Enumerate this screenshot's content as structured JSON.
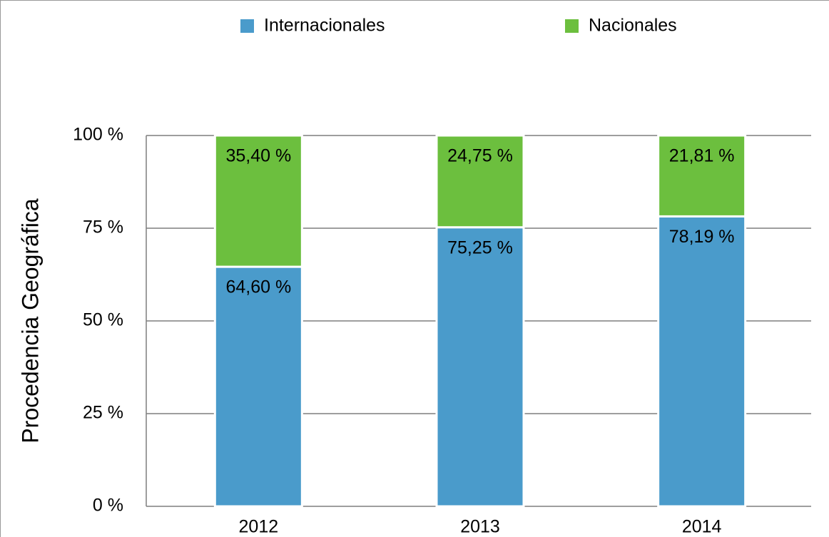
{
  "chart_data": {
    "type": "stacked_bar",
    "y_label": "Procedencia Geográfica",
    "categories": [
      "2012",
      "2013",
      "2014"
    ],
    "series": [
      {
        "name": "Internacionales",
        "color": "#4a9bcb",
        "values": [
          64.6,
          75.25,
          78.19
        ],
        "value_labels": [
          "64,60 %",
          "75,25 %",
          "78,19 %"
        ]
      },
      {
        "name": "Nacionales",
        "color": "#6cbf3e",
        "values": [
          35.4,
          24.75,
          21.81
        ],
        "value_labels": [
          "35,40 %",
          "24,75 %",
          "21,81 %"
        ]
      }
    ],
    "ylim": [
      0,
      100
    ],
    "yticks": [
      {
        "value": 0,
        "label": "0 %"
      },
      {
        "value": 25,
        "label": "25 %"
      },
      {
        "value": 50,
        "label": "50 %"
      },
      {
        "value": 75,
        "label": "75 %"
      },
      {
        "value": 100,
        "label": "100 %"
      }
    ],
    "grid": true,
    "legend": "top"
  }
}
